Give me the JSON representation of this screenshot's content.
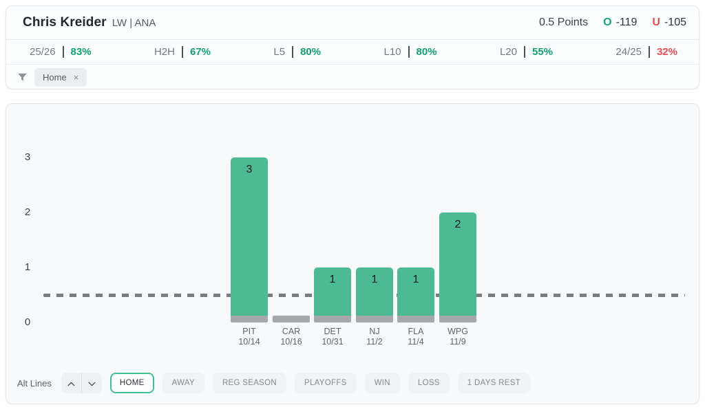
{
  "header": {
    "player_name": "Chris Kreider",
    "player_meta": "LW | ANA",
    "line_label": "0.5 Points",
    "over_symbol": "O",
    "over_odds": "-119",
    "under_symbol": "U",
    "under_odds": "-105"
  },
  "splits": [
    {
      "label": "25/26",
      "value": "83%",
      "status": "green"
    },
    {
      "label": "H2H",
      "value": "67%",
      "status": "green"
    },
    {
      "label": "L5",
      "value": "80%",
      "status": "green"
    },
    {
      "label": "L10",
      "value": "80%",
      "status": "green"
    },
    {
      "label": "L20",
      "value": "55%",
      "status": "green"
    },
    {
      "label": "24/25",
      "value": "32%",
      "status": "red"
    }
  ],
  "filters": {
    "chips": [
      {
        "label": "Home",
        "close": "×"
      }
    ]
  },
  "chart_data": {
    "type": "bar",
    "categories": [
      "PIT",
      "CAR",
      "DET",
      "NJ",
      "FLA",
      "WPG"
    ],
    "dates": [
      "10/14",
      "10/16",
      "10/31",
      "11/2",
      "11/4",
      "11/9"
    ],
    "values": [
      3,
      0,
      1,
      1,
      1,
      2
    ],
    "threshold_line": 0.5,
    "yticks": [
      0,
      1,
      2,
      3
    ],
    "ylim": [
      0,
      3.3
    ],
    "grid": false,
    "title": "",
    "xlabel": "",
    "ylabel": "",
    "bar_color": "#4cba93",
    "base_color": "#a6a7aa",
    "threshold_color": "#7b7c80"
  },
  "controls": {
    "alt_lines_label": "Alt Lines",
    "buttons": [
      {
        "label": "HOME",
        "active": true
      },
      {
        "label": "AWAY",
        "active": false
      },
      {
        "label": "REG SEASON",
        "active": false
      },
      {
        "label": "PLAYOFFS",
        "active": false
      },
      {
        "label": "WIN",
        "active": false
      },
      {
        "label": "LOSS",
        "active": false
      },
      {
        "label": "1 DAYS REST",
        "active": false
      }
    ]
  },
  "colors": {
    "over_green": "#12a873",
    "under_red": "#f2484b",
    "percent_green": "#0ea36c",
    "percent_red": "#f2484b",
    "active_button_border": "#3fc18f"
  }
}
